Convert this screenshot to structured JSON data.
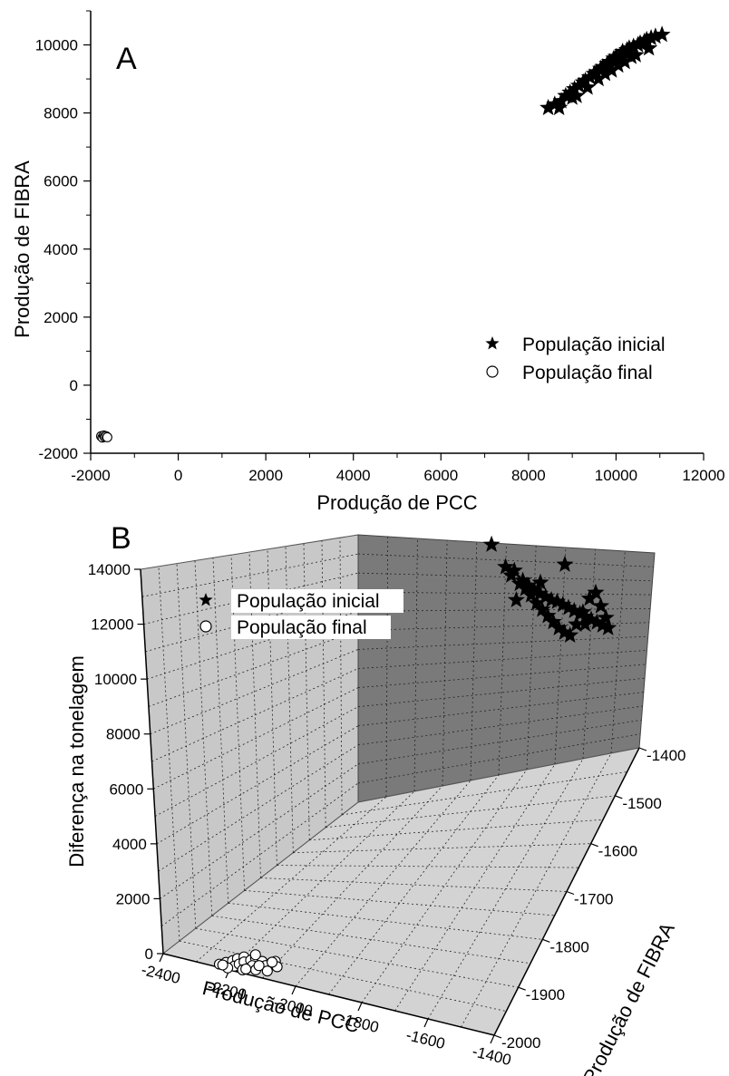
{
  "chart_data": [
    {
      "panel": "A",
      "type": "scatter",
      "xlabel": "Produção de PCC",
      "ylabel": "Produção de FIBRA",
      "xlim": [
        -2000,
        12000
      ],
      "ylim": [
        -2000,
        11000
      ],
      "xticks": [
        -2000,
        0,
        2000,
        4000,
        6000,
        8000,
        10000,
        12000
      ],
      "yticks": [
        -2000,
        0,
        2000,
        4000,
        6000,
        8000,
        10000
      ],
      "legend_position": "right",
      "series": [
        {
          "name": "População inicial",
          "marker": "star",
          "x": [
            8450,
            8600,
            8750,
            8850,
            8950,
            9050,
            9150,
            9250,
            9300,
            9400,
            9500,
            9550,
            9650,
            9700,
            9800,
            9850,
            9950,
            10000,
            10100,
            10150,
            10250,
            10300,
            10400,
            10500,
            10550,
            10650,
            10700,
            10800,
            10900,
            11050,
            9100,
            9350,
            9600,
            9900,
            10200,
            10450,
            10750,
            8700,
            9000,
            9750,
            10050,
            10350
          ],
          "y": [
            8150,
            8250,
            8350,
            8500,
            8600,
            8700,
            8800,
            8900,
            8950,
            9050,
            9150,
            9200,
            9300,
            9350,
            9450,
            9500,
            9600,
            9650,
            9700,
            9800,
            9850,
            9900,
            9950,
            10000,
            10050,
            10100,
            10150,
            10200,
            10250,
            10300,
            8500,
            8750,
            9000,
            9250,
            9500,
            9700,
            9900,
            8150,
            8450,
            9150,
            9400,
            9650
          ]
        },
        {
          "name": "População final",
          "marker": "circle",
          "x": [
            -1760,
            -1730,
            -1700,
            -1680,
            -1650,
            -1620
          ],
          "y": [
            -1500,
            -1540,
            -1480,
            -1520,
            -1500,
            -1530
          ]
        }
      ]
    },
    {
      "panel": "B",
      "type": "scatter3d",
      "xlabel": "Produção de PCC",
      "ylabel": "Produção de FIBRA",
      "zlabel": "Diferença na tonelagem",
      "xticks": [
        -2400,
        -2200,
        -2000,
        -1800,
        -1600,
        -1400
      ],
      "yticks": [
        -2000,
        -1900,
        -1800,
        -1700,
        -1600,
        -1500,
        -1400
      ],
      "zticks": [
        0,
        2000,
        4000,
        6000,
        8000,
        10000,
        12000,
        14000
      ],
      "legend_position": "top-left",
      "series": [
        {
          "name": "População inicial",
          "marker": "star",
          "note_projection": "back wall",
          "x": [
            -1950,
            -1900,
            -1870,
            -1840,
            -1820,
            -1800,
            -1780,
            -1760,
            -1740,
            -1720,
            -1700,
            -1680,
            -1660,
            -1640,
            -1620,
            -1600,
            -1580,
            -1560,
            -1540,
            -1880,
            -1850,
            -1830,
            -1810,
            -1790,
            -1770,
            -1750,
            -1730,
            -1710,
            -1690,
            -1670,
            -1650,
            -1630,
            -1610,
            -1590,
            -1570,
            -1550,
            -1860,
            -1780,
            -1700,
            -1620
          ],
          "z": [
            13900,
            12600,
            12400,
            11800,
            11500,
            11200,
            11000,
            10800,
            10600,
            10500,
            10300,
            10100,
            9900,
            9700,
            9500,
            9300,
            9100,
            8900,
            8700,
            12100,
            11600,
            11300,
            10900,
            10400,
            10000,
            9600,
            9200,
            8800,
            8500,
            8300,
            9000,
            9800,
            10700,
            11100,
            10200,
            9400,
            10600,
            11700,
            12900,
            9000
          ]
        },
        {
          "name": "População final",
          "marker": "circle",
          "x": [
            -2240,
            -2230,
            -2220,
            -2215,
            -2205,
            -2200,
            -2195,
            -2190,
            -2180,
            -2175,
            -2170,
            -2160,
            -2150,
            -2140,
            -2130,
            -2120,
            -2110,
            -2100,
            -2210,
            -2185,
            -2165,
            -2145,
            -2125,
            -2230
          ],
          "y": [
            -1990,
            -1980,
            -1970,
            -1960,
            -1950,
            -1985,
            -1975,
            -1965,
            -1955,
            -1945,
            -1990,
            -1970,
            -1950,
            -1980,
            -1960,
            -1940,
            -1975,
            -1955,
            -1995,
            -1935,
            -1985,
            -1965,
            -1945,
            -1990
          ],
          "z": [
            0,
            0,
            0,
            0,
            0,
            0,
            0,
            0,
            0,
            0,
            0,
            0,
            0,
            0,
            0,
            0,
            0,
            0,
            0,
            0,
            0,
            0,
            0,
            0
          ]
        }
      ]
    }
  ],
  "legend": {
    "initial": "População inicial",
    "final": "População final"
  },
  "labels": {
    "panel_a": "A",
    "panel_b": "B",
    "a_xlabel": "Produção de PCC",
    "a_ylabel": "Produção de FIBRA",
    "b_xlabel": "Produção de PCC",
    "b_ylabel": "Produção de FIBRA",
    "b_zlabel": "Diferença na tonelagem"
  },
  "colors": {
    "star": "#000000",
    "circle_fill": "#ffffff",
    "left_wall": "#c8c8c8",
    "back_wall": "#7a7a7a",
    "floor": "#d3d3d3"
  }
}
